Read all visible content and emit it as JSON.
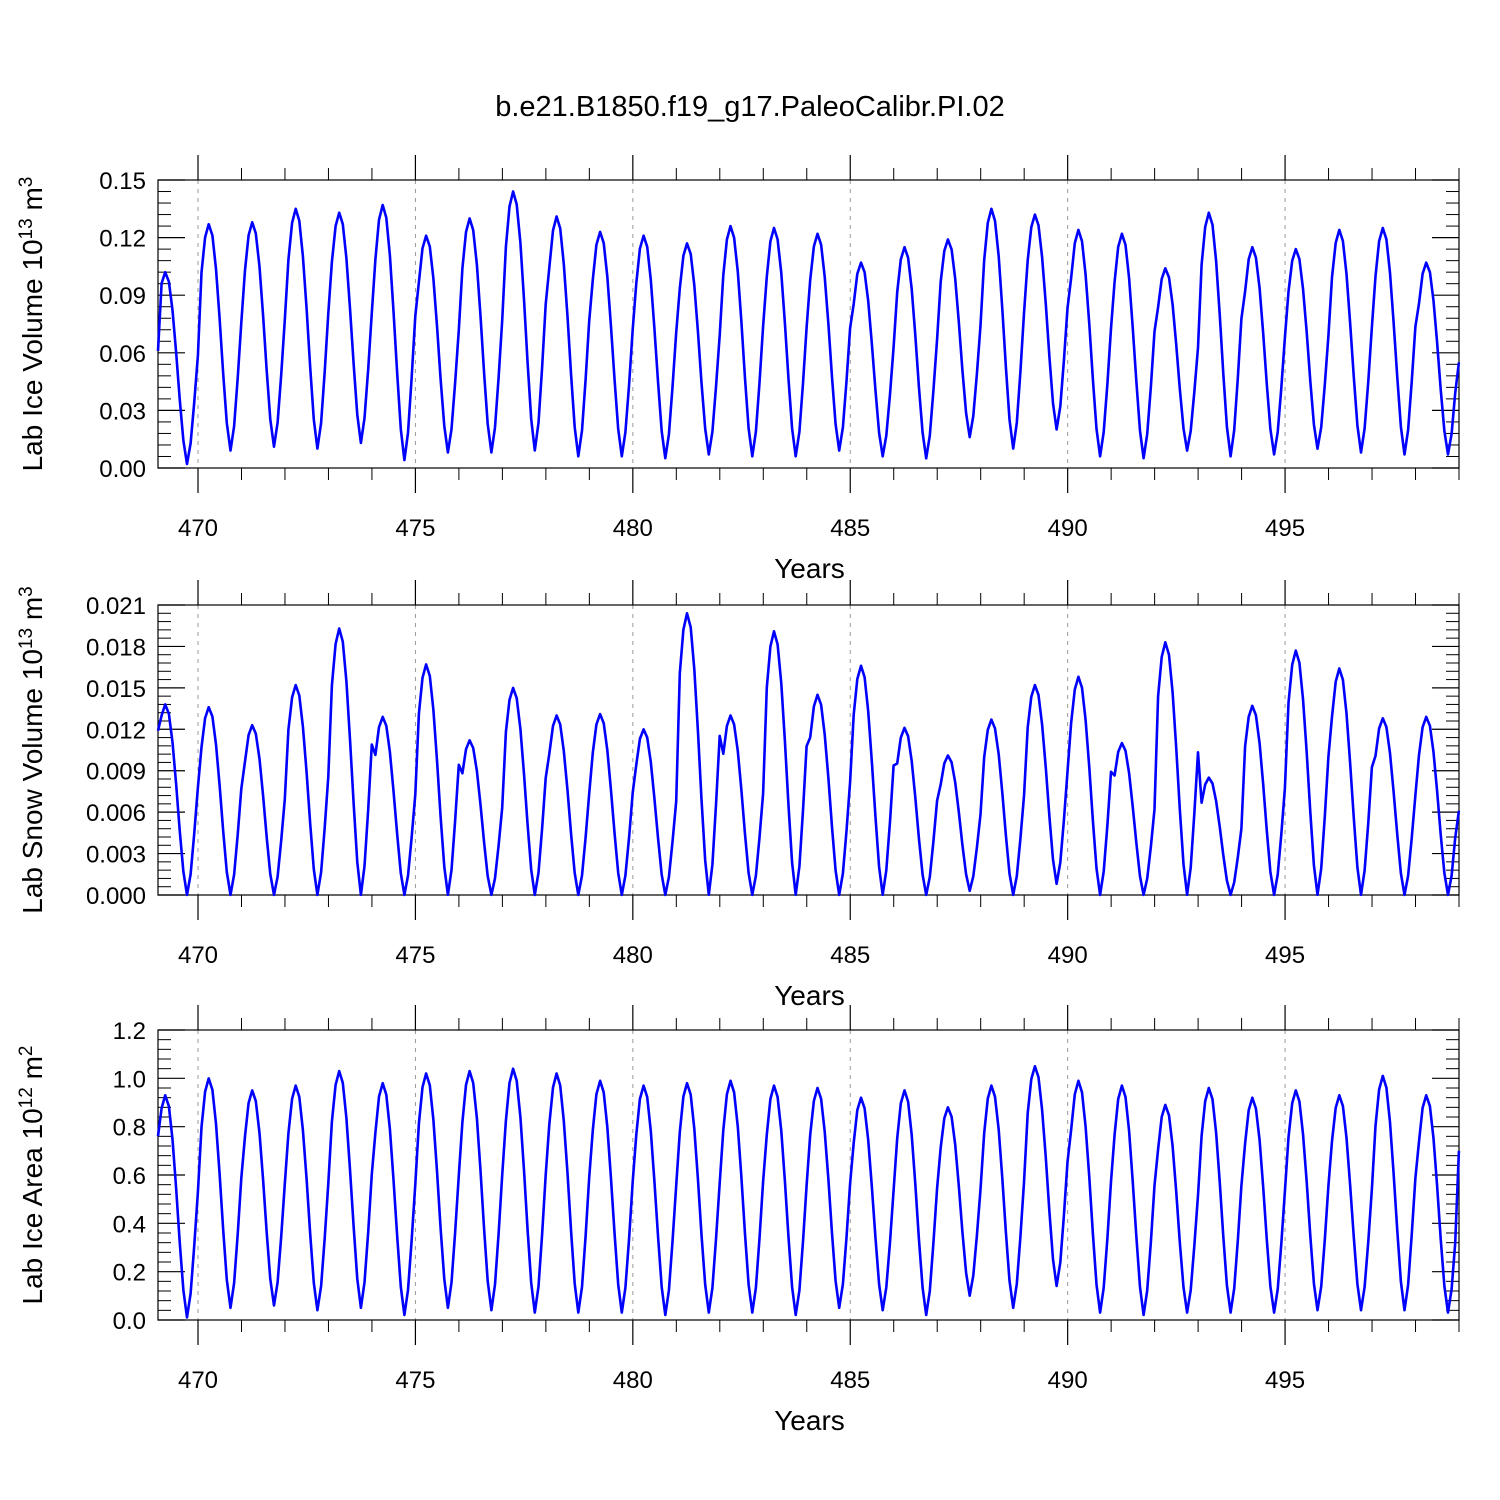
{
  "title": "b.e21.B1850.f19_g17.PaleoCalibr.PI.02",
  "colors": {
    "series": "#0000ff",
    "axis": "#000000",
    "gridline": "#999999",
    "background": "#ffffff"
  },
  "chart_data": [
    {
      "type": "line",
      "ylabel": {
        "prefix": "Lab Ice Volume 10",
        "exponent": "13",
        "unit": " m",
        "unit_exponent": "3"
      },
      "xlabel": "Years",
      "xlim": [
        469.08,
        499.0
      ],
      "ylim": [
        0.0,
        0.15
      ],
      "yticks": [
        0.0,
        0.03,
        0.06,
        0.09,
        0.12,
        0.15
      ],
      "ytick_labels": [
        "0.00",
        "0.03",
        "0.06",
        "0.09",
        "0.12",
        "0.15"
      ],
      "xticks": [
        470,
        475,
        480,
        485,
        490,
        495
      ],
      "xtick_labels": [
        "470",
        "475",
        "480",
        "485",
        "490",
        "495"
      ],
      "reference_lines": [
        470,
        475,
        480,
        485,
        490,
        495
      ],
      "cycle_minima": [
        0.002,
        0.009,
        0.011,
        0.01,
        0.013,
        0.004,
        0.008,
        0.008,
        0.009,
        0.006,
        0.006,
        0.005,
        0.007,
        0.006,
        0.006,
        0.009,
        0.006,
        0.005,
        0.016,
        0.01,
        0.02,
        0.006,
        0.005,
        0.009,
        0.006,
        0.007,
        0.01,
        0.008,
        0.007,
        0.007
      ],
      "cycle_maxima": [
        0.102,
        0.127,
        0.128,
        0.135,
        0.133,
        0.137,
        0.121,
        0.13,
        0.144,
        0.131,
        0.123,
        0.121,
        0.117,
        0.126,
        0.125,
        0.122,
        0.107,
        0.115,
        0.119,
        0.135,
        0.132,
        0.124,
        0.122,
        0.104,
        0.133,
        0.115,
        0.114,
        0.124,
        0.125,
        0.107
      ],
      "start_value": 0.061,
      "end_value": 0.055,
      "samples_per_year": 12
    },
    {
      "type": "line",
      "ylabel": {
        "prefix": "Lab Snow Volume 10",
        "exponent": "13",
        "unit": " m",
        "unit_exponent": "3"
      },
      "xlabel": "Years",
      "xlim": [
        469.08,
        499.0
      ],
      "ylim": [
        0.0,
        0.021
      ],
      "yticks": [
        0.0,
        0.003,
        0.006,
        0.009,
        0.012,
        0.015,
        0.018,
        0.021
      ],
      "ytick_labels": [
        "0.000",
        "0.003",
        "0.006",
        "0.009",
        "0.012",
        "0.015",
        "0.018",
        "0.021"
      ],
      "xticks": [
        470,
        475,
        480,
        485,
        490,
        495
      ],
      "xtick_labels": [
        "470",
        "475",
        "480",
        "485",
        "490",
        "495"
      ],
      "reference_lines": [
        470,
        475,
        480,
        485,
        490,
        495
      ],
      "cycle_minima": [
        0.0,
        0.0,
        0.0,
        0.0,
        0.0,
        0.0,
        0.0,
        0.0,
        0.0,
        0.0,
        0.0,
        0.0,
        0.0,
        0.0,
        0.0,
        0.0,
        0.0,
        0.0,
        0.0003,
        0.0,
        0.0008,
        0.0,
        0.0,
        0.0,
        0.0,
        0.0,
        0.0,
        0.0,
        0.0,
        0.0
      ],
      "cycle_maxima": [
        0.0138,
        0.0136,
        0.0123,
        0.0152,
        0.0193,
        0.0129,
        0.0167,
        0.0112,
        0.015,
        0.013,
        0.0131,
        0.012,
        0.0204,
        0.013,
        0.0191,
        0.0145,
        0.0166,
        0.0121,
        0.0101,
        0.0127,
        0.0152,
        0.0158,
        0.011,
        0.0183,
        0.0085,
        0.0137,
        0.0177,
        0.0164,
        0.0128,
        0.0129
      ],
      "start_value": 0.0119,
      "end_value": 0.0061,
      "samples_per_year": 12
    },
    {
      "type": "line",
      "ylabel": {
        "prefix": "Lab Ice Area 10",
        "exponent": "12",
        "unit": " m",
        "unit_exponent": "2"
      },
      "xlabel": "Years",
      "xlim": [
        469.08,
        499.0
      ],
      "ylim": [
        0.0,
        1.2
      ],
      "yticks": [
        0.0,
        0.2,
        0.4,
        0.6,
        0.8,
        1.0,
        1.2
      ],
      "ytick_labels": [
        "0.0",
        "0.2",
        "0.4",
        "0.6",
        "0.8",
        "1.0",
        "1.2"
      ],
      "xticks": [
        470,
        475,
        480,
        485,
        490,
        495
      ],
      "xtick_labels": [
        "470",
        "475",
        "480",
        "485",
        "490",
        "495"
      ],
      "reference_lines": [
        470,
        475,
        480,
        485,
        490,
        495
      ],
      "cycle_minima": [
        0.01,
        0.05,
        0.06,
        0.04,
        0.05,
        0.02,
        0.05,
        0.04,
        0.03,
        0.03,
        0.03,
        0.02,
        0.03,
        0.03,
        0.02,
        0.05,
        0.04,
        0.02,
        0.1,
        0.05,
        0.14,
        0.03,
        0.02,
        0.03,
        0.03,
        0.03,
        0.04,
        0.04,
        0.04,
        0.03
      ],
      "cycle_maxima": [
        0.93,
        1.0,
        0.95,
        0.97,
        1.03,
        0.98,
        1.02,
        1.03,
        1.04,
        1.02,
        0.99,
        0.97,
        0.98,
        0.99,
        0.97,
        0.96,
        0.92,
        0.95,
        0.88,
        0.97,
        1.05,
        0.99,
        0.97,
        0.89,
        0.96,
        0.92,
        0.95,
        0.93,
        1.01,
        0.93
      ],
      "start_value": 0.76,
      "end_value": 0.7,
      "samples_per_year": 12
    }
  ]
}
